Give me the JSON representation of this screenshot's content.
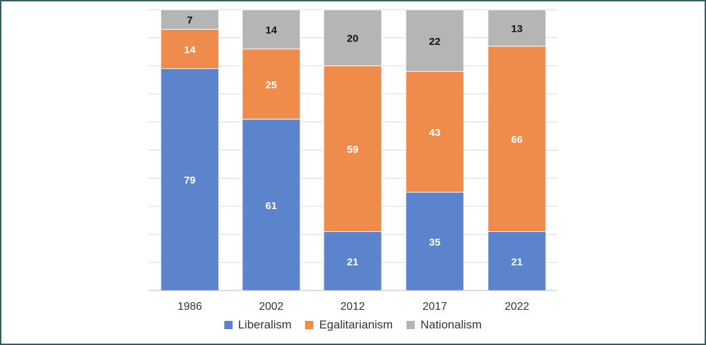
{
  "chart_data": {
    "type": "bar",
    "stacked": true,
    "categories": [
      "1986",
      "2002",
      "2012",
      "2017",
      "2022"
    ],
    "series": [
      {
        "name": "Liberalism",
        "color": "#5b84cc",
        "label_color": "#ffffff",
        "values": [
          79,
          61,
          21,
          35,
          21
        ]
      },
      {
        "name": "Egalitarianism",
        "color": "#ef8c4c",
        "label_color": "#ffffff",
        "values": [
          14,
          25,
          59,
          43,
          66
        ]
      },
      {
        "name": "Nationalism",
        "color": "#b5b5b5",
        "label_color": "#111111",
        "values": [
          7,
          14,
          20,
          22,
          13
        ]
      }
    ],
    "ylim": [
      0,
      100
    ],
    "grid": true,
    "legend_position": "bottom"
  }
}
